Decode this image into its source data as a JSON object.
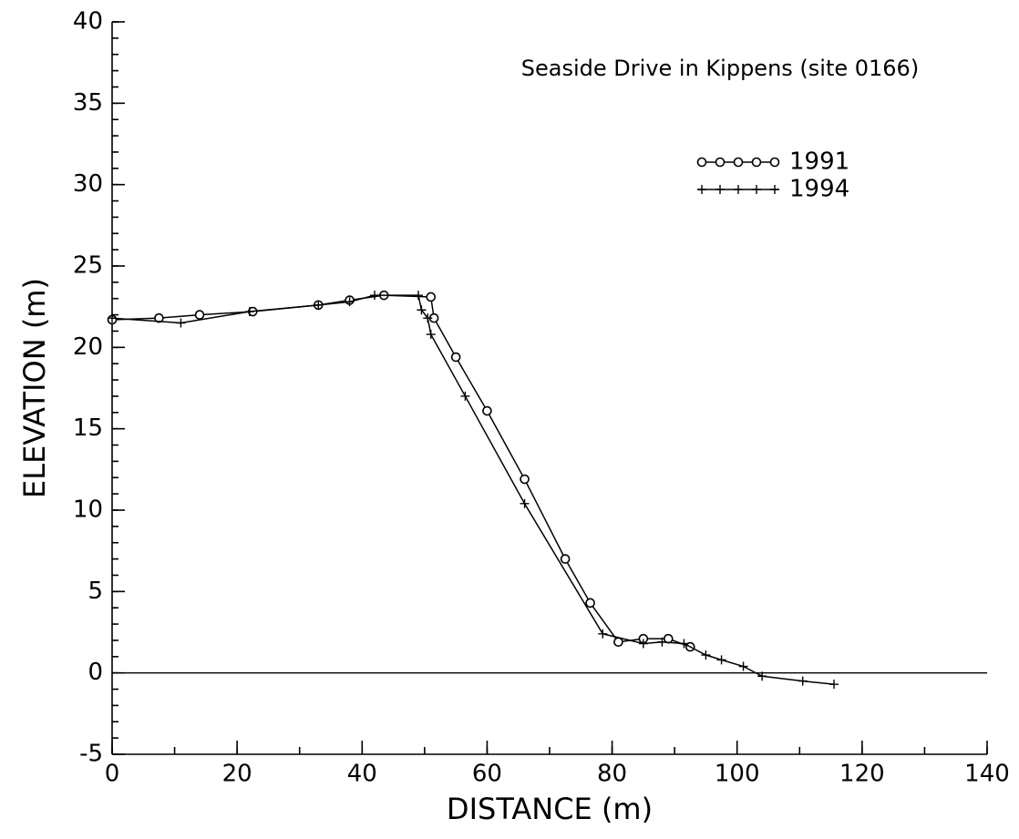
{
  "chart_data": {
    "type": "line",
    "title": "Seaside Drive in Kippens (site 0166)",
    "xlabel": "DISTANCE  (m)",
    "ylabel": "ELEVATION  (m)",
    "xlim": [
      0,
      140
    ],
    "xticks": [
      0,
      20,
      40,
      60,
      80,
      100,
      120,
      140
    ],
    "xminor_step": 10,
    "ylim": [
      -5,
      40
    ],
    "yticks": [
      -5,
      0,
      5,
      10,
      15,
      20,
      25,
      30,
      35,
      40
    ],
    "yminor_step": 1,
    "hline": 0,
    "series": [
      {
        "name": "1991",
        "color": "#000000",
        "marker": "circle",
        "x": [
          0,
          7.5,
          14,
          22.5,
          33,
          38,
          43.5,
          51,
          51.5,
          55,
          60,
          66,
          72.5,
          76.5,
          81,
          85,
          89,
          92.5
        ],
        "values": [
          21.7,
          21.8,
          22.0,
          22.2,
          22.6,
          22.9,
          23.2,
          23.1,
          21.8,
          19.4,
          16.1,
          11.9,
          7.0,
          4.3,
          1.9,
          2.1,
          2.1,
          1.6
        ]
      },
      {
        "name": "1994",
        "color": "#000000",
        "marker": "plus",
        "x": [
          0,
          11,
          22,
          33,
          38,
          42,
          49,
          49.5,
          50.5,
          51,
          56.5,
          66,
          78.5,
          85,
          88,
          91.5,
          95,
          97.5,
          101,
          104,
          110.5,
          115.5
        ],
        "values": [
          21.8,
          21.5,
          22.2,
          22.6,
          22.8,
          23.2,
          23.2,
          22.3,
          21.8,
          20.8,
          17.0,
          10.4,
          2.4,
          1.8,
          1.9,
          1.8,
          1.1,
          0.8,
          0.4,
          -0.2,
          -0.5,
          -0.7
        ]
      }
    ]
  }
}
